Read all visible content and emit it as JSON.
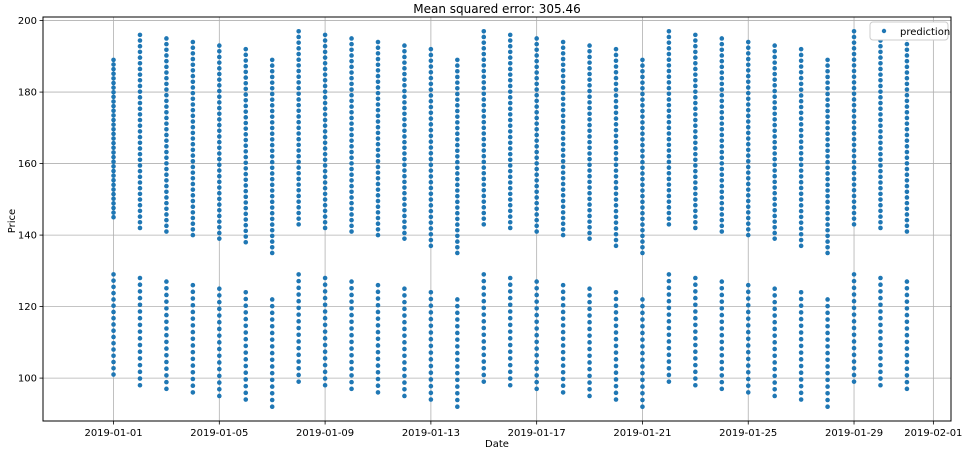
{
  "chart_data": {
    "type": "scatter",
    "title": "Mean squared error: 305.46",
    "xlabel": "Date",
    "ylabel": "Price",
    "grid": true,
    "legend_position": "top-right",
    "series_color": "#1f77b4",
    "xlim": [
      "2018-12-29T08:00",
      "2019-02-01T16:00"
    ],
    "ylim": [
      88,
      201
    ],
    "x_ticks": [
      "2019-01-01",
      "2019-01-05",
      "2019-01-09",
      "2019-01-13",
      "2019-01-17",
      "2019-01-21",
      "2019-01-25",
      "2019-01-29",
      "2019-02-01"
    ],
    "y_ticks": [
      100,
      120,
      140,
      160,
      180,
      200
    ],
    "series": [
      {
        "name": "prediction",
        "marker": "circle",
        "columns": [
          {
            "date": "2019-01-01",
            "upper": [
              145,
              189
            ],
            "lower": [
              101,
              129
            ]
          },
          {
            "date": "2019-01-02",
            "upper": [
              142,
              196
            ],
            "lower": [
              98,
              128
            ]
          },
          {
            "date": "2019-01-03",
            "upper": [
              141,
              195
            ],
            "lower": [
              97,
              127
            ]
          },
          {
            "date": "2019-01-04",
            "upper": [
              140,
              194
            ],
            "lower": [
              96,
              126
            ]
          },
          {
            "date": "2019-01-05",
            "upper": [
              139,
              193
            ],
            "lower": [
              95,
              125
            ]
          },
          {
            "date": "2019-01-06",
            "upper": [
              138,
              192
            ],
            "lower": [
              94,
              124
            ]
          },
          {
            "date": "2019-01-07",
            "upper": [
              135,
              189
            ],
            "lower": [
              92,
              122
            ]
          },
          {
            "date": "2019-01-08",
            "upper": [
              143,
              197
            ],
            "lower": [
              99,
              129
            ]
          },
          {
            "date": "2019-01-09",
            "upper": [
              142,
              196
            ],
            "lower": [
              98,
              128
            ]
          },
          {
            "date": "2019-01-10",
            "upper": [
              141,
              195
            ],
            "lower": [
              97,
              127
            ]
          },
          {
            "date": "2019-01-11",
            "upper": [
              140,
              194
            ],
            "lower": [
              96,
              126
            ]
          },
          {
            "date": "2019-01-12",
            "upper": [
              139,
              193
            ],
            "lower": [
              95,
              125
            ]
          },
          {
            "date": "2019-01-13",
            "upper": [
              137,
              192
            ],
            "lower": [
              94,
              124
            ]
          },
          {
            "date": "2019-01-14",
            "upper": [
              135,
              189
            ],
            "lower": [
              92,
              122
            ]
          },
          {
            "date": "2019-01-15",
            "upper": [
              143,
              197
            ],
            "lower": [
              99,
              129
            ]
          },
          {
            "date": "2019-01-16",
            "upper": [
              142,
              196
            ],
            "lower": [
              98,
              128
            ]
          },
          {
            "date": "2019-01-17",
            "upper": [
              141,
              195
            ],
            "lower": [
              97,
              127
            ]
          },
          {
            "date": "2019-01-18",
            "upper": [
              140,
              194
            ],
            "lower": [
              96,
              126
            ]
          },
          {
            "date": "2019-01-19",
            "upper": [
              139,
              193
            ],
            "lower": [
              95,
              125
            ]
          },
          {
            "date": "2019-01-20",
            "upper": [
              137,
              192
            ],
            "lower": [
              94,
              124
            ]
          },
          {
            "date": "2019-01-21",
            "upper": [
              135,
              189
            ],
            "lower": [
              92,
              122
            ]
          },
          {
            "date": "2019-01-22",
            "upper": [
              143,
              197
            ],
            "lower": [
              99,
              129
            ]
          },
          {
            "date": "2019-01-23",
            "upper": [
              142,
              196
            ],
            "lower": [
              98,
              128
            ]
          },
          {
            "date": "2019-01-24",
            "upper": [
              141,
              195
            ],
            "lower": [
              97,
              127
            ]
          },
          {
            "date": "2019-01-25",
            "upper": [
              140,
              194
            ],
            "lower": [
              96,
              126
            ]
          },
          {
            "date": "2019-01-26",
            "upper": [
              139,
              193
            ],
            "lower": [
              95,
              125
            ]
          },
          {
            "date": "2019-01-27",
            "upper": [
              137,
              192
            ],
            "lower": [
              94,
              124
            ]
          },
          {
            "date": "2019-01-28",
            "upper": [
              135,
              189
            ],
            "lower": [
              92,
              122
            ]
          },
          {
            "date": "2019-01-29",
            "upper": [
              143,
              197
            ],
            "lower": [
              99,
              129
            ]
          },
          {
            "date": "2019-01-30",
            "upper": [
              142,
              196
            ],
            "lower": [
              98,
              128
            ]
          },
          {
            "date": "2019-01-31",
            "upper": [
              141,
              195
            ],
            "lower": [
              97,
              127
            ]
          }
        ]
      }
    ]
  }
}
